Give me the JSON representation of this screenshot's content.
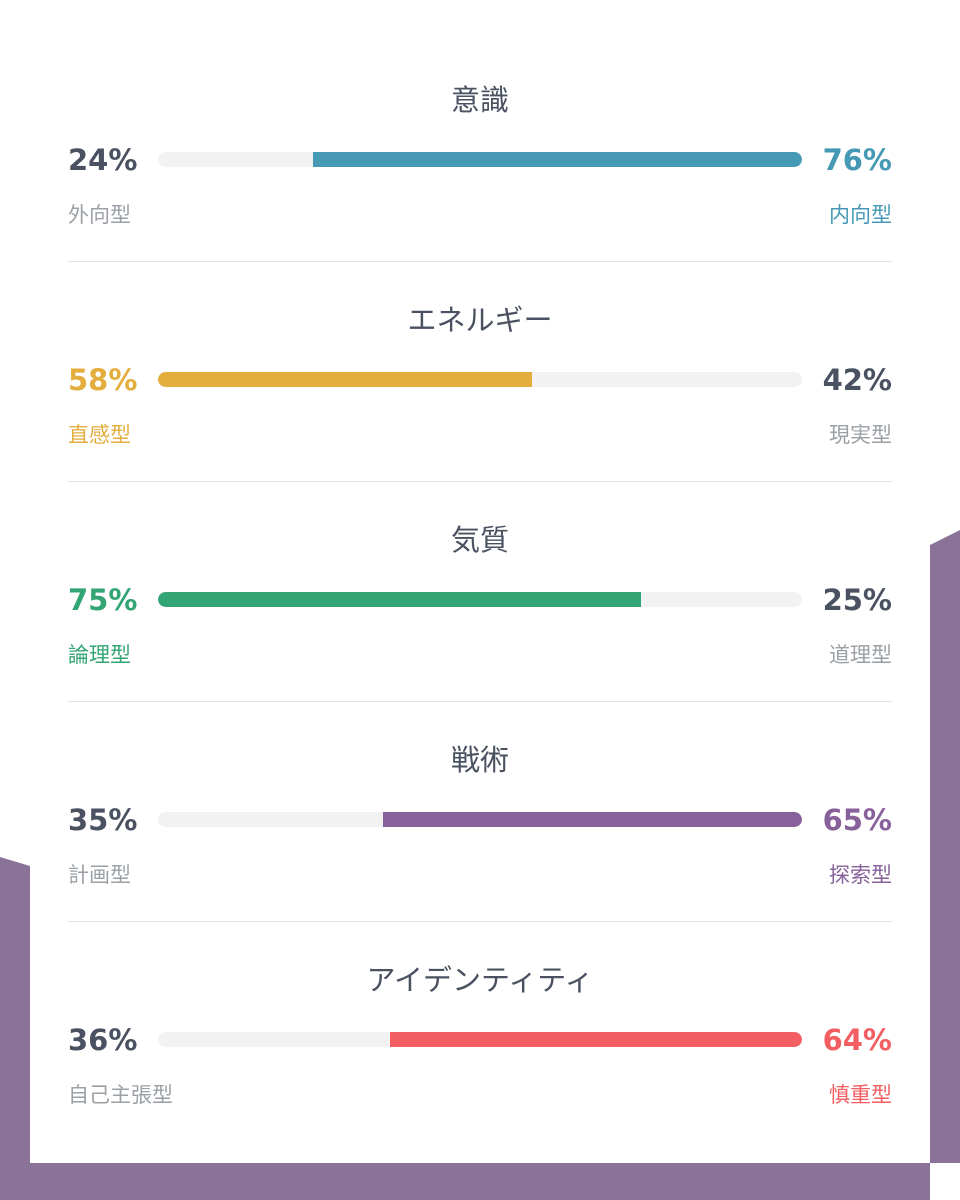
{
  "colors": {
    "background_shape": "#8a7299",
    "neutral_text": "#4a5161",
    "muted_text": "#9aa0a6",
    "track": "#f2f2f2",
    "divider": "#e3e3e3"
  },
  "traits": [
    {
      "title": "意識",
      "left": {
        "percent": "24%",
        "label": "外向型"
      },
      "right": {
        "percent": "76%",
        "label": "内向型"
      },
      "dominant": "right",
      "dominant_value": 0.76,
      "color": "#4599b4"
    },
    {
      "title": "エネルギー",
      "left": {
        "percent": "58%",
        "label": "直感型"
      },
      "right": {
        "percent": "42%",
        "label": "現実型"
      },
      "dominant": "left",
      "dominant_value": 0.58,
      "color": "#e3ae3d"
    },
    {
      "title": "気質",
      "left": {
        "percent": "75%",
        "label": "論理型"
      },
      "right": {
        "percent": "25%",
        "label": "道理型"
      },
      "dominant": "left",
      "dominant_value": 0.75,
      "color": "#33a474"
    },
    {
      "title": "戦術",
      "left": {
        "percent": "35%",
        "label": "計画型"
      },
      "right": {
        "percent": "65%",
        "label": "探索型"
      },
      "dominant": "right",
      "dominant_value": 0.65,
      "color": "#88619a"
    },
    {
      "title": "アイデンティティ",
      "left": {
        "percent": "36%",
        "label": "自己主張型"
      },
      "right": {
        "percent": "64%",
        "label": "慎重型"
      },
      "dominant": "right",
      "dominant_value": 0.64,
      "color": "#f25e62"
    }
  ]
}
